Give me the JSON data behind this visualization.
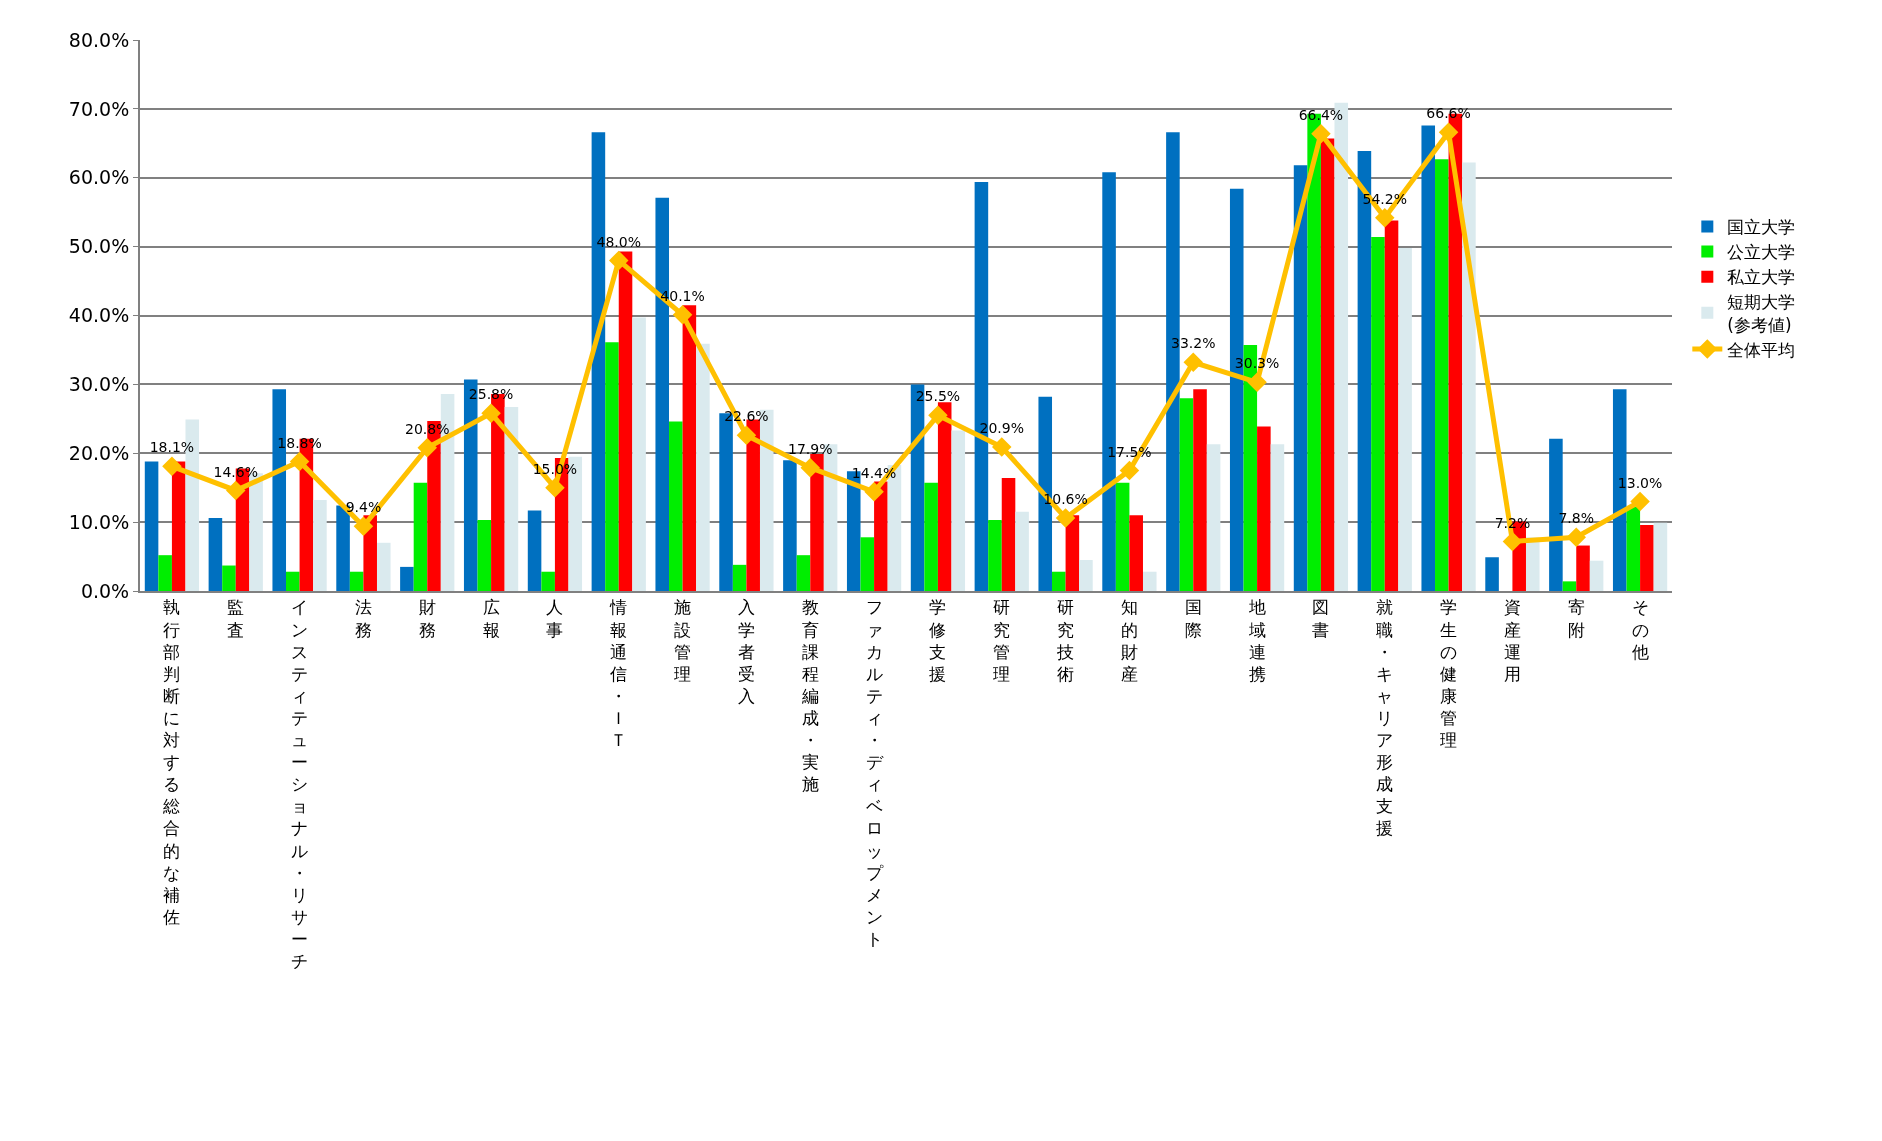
{
  "chart_data": {
    "type": "bar",
    "categories": [
      "執行部判断に対する総合的な補佐",
      "監査",
      "インスティテューショナル・リサーチ",
      "法務",
      "財務",
      "広報",
      "人事",
      "情報通信・ＩＴ",
      "施設管理",
      "入学者受入",
      "教育課程編成・実施",
      "ファカルティ・ディベロップメント",
      "学修支援",
      "研究管理",
      "研究技術",
      "知的財産",
      "国際",
      "地域連携",
      "図書",
      "就職・キャリア形成支援",
      "学生の健康管理",
      "資産運用",
      "寄附",
      "その他"
    ],
    "series": [
      {
        "name": "国立大学",
        "color": "#0070c0",
        "values": [
          18.8,
          10.6,
          29.3,
          12.4,
          3.5,
          30.7,
          11.7,
          66.6,
          57.1,
          25.8,
          19.0,
          17.4,
          30.0,
          59.4,
          28.2,
          60.8,
          66.6,
          58.4,
          61.8,
          63.9,
          67.6,
          4.9,
          22.1,
          29.3
        ]
      },
      {
        "name": "公立大学",
        "color": "#00ee00",
        "values": [
          5.2,
          3.7,
          2.8,
          2.8,
          15.7,
          10.3,
          2.8,
          36.1,
          24.6,
          3.8,
          5.2,
          7.8,
          15.7,
          10.3,
          2.8,
          15.7,
          28.0,
          35.7,
          69.3,
          51.4,
          62.7,
          0,
          1.4,
          12.2
        ]
      },
      {
        "name": "私立大学",
        "color": "#ff0000",
        "values": [
          18.8,
          17.8,
          22.1,
          11.0,
          24.7,
          28.6,
          19.3,
          49.3,
          41.5,
          24.9,
          19.9,
          15.9,
          27.4,
          16.4,
          11.0,
          11.0,
          29.3,
          23.9,
          65.7,
          53.8,
          69.3,
          10.1,
          6.6,
          9.6
        ]
      },
      {
        "name": "短期大学\n(参考値)",
        "color": "#daeaee",
        "values": [
          24.9,
          17.1,
          13.2,
          7.0,
          28.6,
          26.7,
          19.5,
          39.7,
          35.9,
          26.3,
          21.3,
          18.3,
          23.3,
          11.5,
          4.5,
          2.8,
          21.3,
          21.3,
          70.9,
          49.8,
          62.2,
          7.8,
          4.4,
          9.9
        ]
      },
      {
        "name": "全体平均",
        "type": "line",
        "color": "#ffc000",
        "values": [
          18.1,
          14.6,
          18.8,
          9.4,
          20.8,
          25.8,
          15.0,
          48.0,
          40.1,
          22.6,
          17.9,
          14.4,
          25.5,
          20.9,
          10.6,
          17.5,
          33.2,
          30.3,
          66.4,
          54.2,
          66.6,
          7.2,
          7.8,
          13.0
        ],
        "value_labels": [
          "18.1%",
          "14.6%",
          "18.8%",
          "9.4%",
          "20.8%",
          "25.8%",
          "15.0%",
          "48.0%",
          "40.1%",
          "22.6%",
          "17.9%",
          "14.4%",
          "25.5%",
          "20.9%",
          "10.6%",
          "17.5%",
          "33.2%",
          "30.3%",
          "66.4%",
          "54.2%",
          "66.6%",
          "7.2%",
          "7.8%",
          "13.0%"
        ]
      }
    ],
    "ylim": [
      0,
      80
    ],
    "yticks": [
      {
        "value": 0,
        "label": "0.0%"
      },
      {
        "value": 10,
        "label": "10.0%"
      },
      {
        "value": 20,
        "label": "20.0%"
      },
      {
        "value": 30,
        "label": "30.0%"
      },
      {
        "value": 40,
        "label": "40.0%"
      },
      {
        "value": 50,
        "label": "50.0%"
      },
      {
        "value": 60,
        "label": "60.0%"
      },
      {
        "value": 70,
        "label": "70.0%"
      },
      {
        "value": 80,
        "label": "80.0%"
      }
    ],
    "grid": "y",
    "legend": "right",
    "marker": "diamond"
  }
}
